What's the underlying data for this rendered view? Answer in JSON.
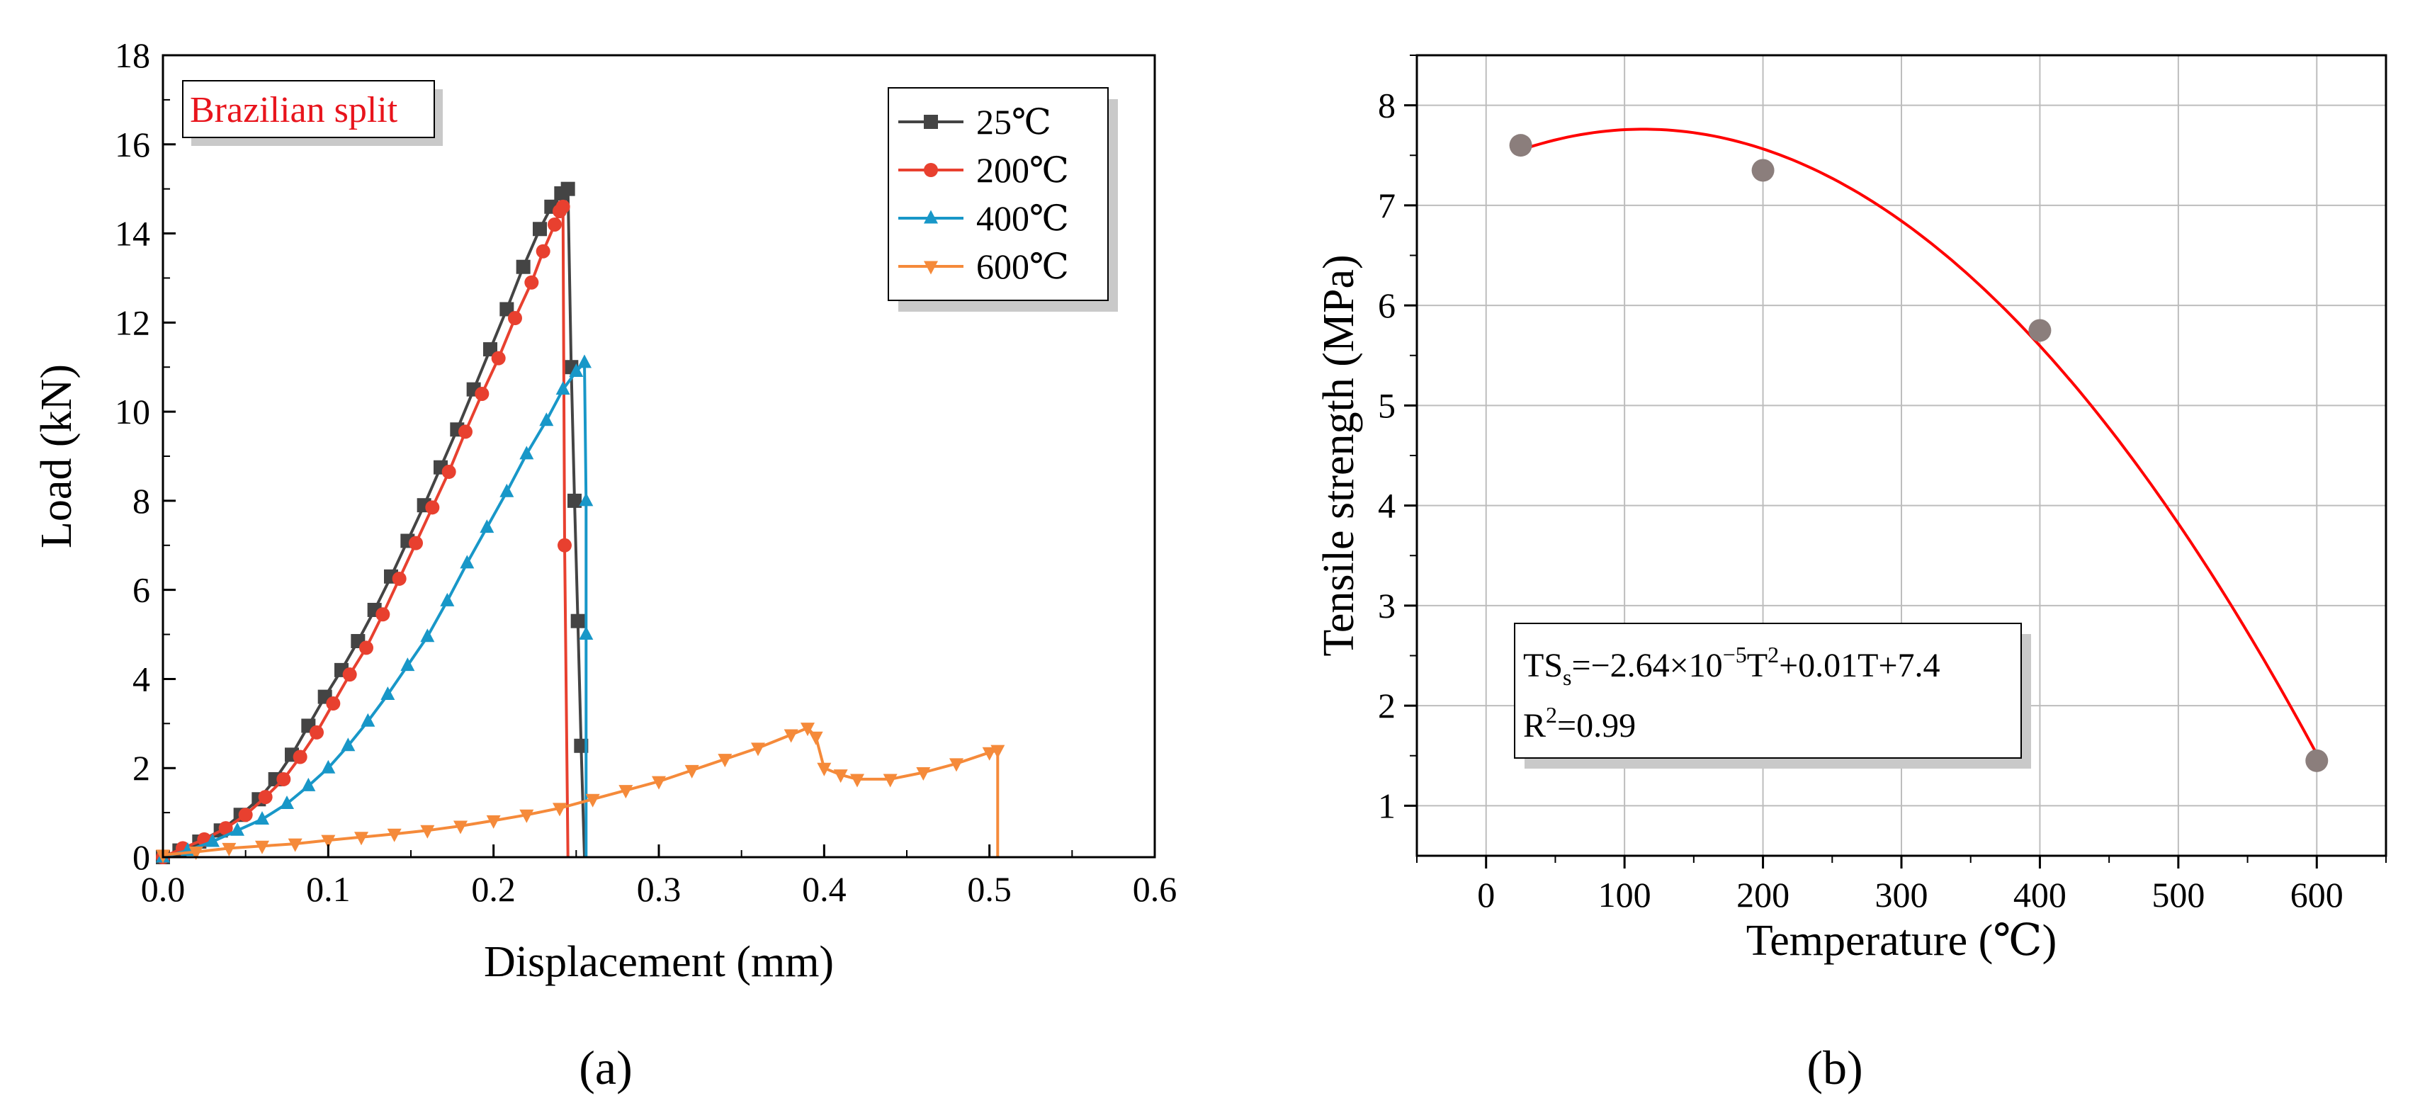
{
  "panel_labels": [
    "(a)",
    "(b)"
  ],
  "chart_data": [
    {
      "type": "line",
      "xlabel": "Displacement (mm)",
      "ylabel": "Load (kN)",
      "xlim": [
        0,
        0.6
      ],
      "ylim": [
        0,
        18
      ],
      "x_ticks": [
        "0.0",
        "0.1",
        "0.2",
        "0.3",
        "0.4",
        "0.5",
        "0.6"
      ],
      "y_ticks": [
        "0",
        "2",
        "4",
        "6",
        "8",
        "10",
        "12",
        "14",
        "16",
        "18"
      ],
      "grid": false,
      "legend_position": "top-right",
      "annotation": "Brazilian split",
      "colors": {
        "annotation_text": "#e8141c"
      },
      "series": [
        {
          "name": "25℃",
          "color": "#444444",
          "marker": "square",
          "x": [
            0.0,
            0.01,
            0.022,
            0.035,
            0.047,
            0.058,
            0.068,
            0.078,
            0.088,
            0.098,
            0.108,
            0.118,
            0.128,
            0.138,
            0.148,
            0.158,
            0.168,
            0.178,
            0.188,
            0.198,
            0.208,
            0.218,
            0.228,
            0.235,
            0.241,
            0.245,
            0.247,
            0.249,
            0.251,
            0.253,
            0.255
          ],
          "y": [
            0.0,
            0.15,
            0.35,
            0.6,
            0.95,
            1.3,
            1.75,
            2.3,
            2.95,
            3.6,
            4.2,
            4.85,
            5.55,
            6.3,
            7.1,
            7.9,
            8.75,
            9.6,
            10.5,
            11.4,
            12.3,
            13.25,
            14.1,
            14.6,
            14.9,
            15.0,
            11.0,
            8.0,
            5.3,
            2.5,
            0.0
          ]
        },
        {
          "name": "200℃",
          "color": "#e8402f",
          "marker": "circle",
          "x": [
            0.0,
            0.012,
            0.025,
            0.038,
            0.05,
            0.062,
            0.073,
            0.083,
            0.093,
            0.103,
            0.113,
            0.123,
            0.133,
            0.143,
            0.153,
            0.163,
            0.173,
            0.183,
            0.193,
            0.203,
            0.213,
            0.223,
            0.23,
            0.237,
            0.24,
            0.242,
            0.243,
            0.245
          ],
          "y": [
            0.0,
            0.2,
            0.4,
            0.65,
            0.95,
            1.35,
            1.75,
            2.25,
            2.8,
            3.45,
            4.1,
            4.7,
            5.45,
            6.25,
            7.05,
            7.85,
            8.65,
            9.55,
            10.4,
            11.2,
            12.1,
            12.9,
            13.6,
            14.2,
            14.5,
            14.6,
            7.0,
            0.0
          ]
        },
        {
          "name": "400℃",
          "color": "#1897c8",
          "marker": "triangle-up",
          "x": [
            0.0,
            0.015,
            0.03,
            0.045,
            0.06,
            0.075,
            0.088,
            0.1,
            0.112,
            0.124,
            0.136,
            0.148,
            0.16,
            0.172,
            0.184,
            0.196,
            0.208,
            0.22,
            0.232,
            0.242,
            0.25,
            0.255,
            0.256,
            0.256,
            0.256
          ],
          "y": [
            0.0,
            0.15,
            0.35,
            0.6,
            0.85,
            1.2,
            1.6,
            2.0,
            2.5,
            3.05,
            3.65,
            4.3,
            4.95,
            5.75,
            6.6,
            7.4,
            8.2,
            9.05,
            9.8,
            10.5,
            10.9,
            11.1,
            8.0,
            5.0,
            0.0
          ]
        },
        {
          "name": "600℃",
          "color": "#f58a3a",
          "marker": "triangle-down",
          "x": [
            0.0,
            0.02,
            0.04,
            0.06,
            0.08,
            0.1,
            0.12,
            0.14,
            0.16,
            0.18,
            0.2,
            0.22,
            0.24,
            0.26,
            0.28,
            0.3,
            0.32,
            0.34,
            0.36,
            0.38,
            0.39,
            0.395,
            0.4,
            0.41,
            0.42,
            0.44,
            0.46,
            0.48,
            0.5,
            0.505,
            0.505
          ],
          "y": [
            0.05,
            0.12,
            0.2,
            0.25,
            0.3,
            0.38,
            0.45,
            0.52,
            0.6,
            0.7,
            0.82,
            0.95,
            1.1,
            1.3,
            1.5,
            1.7,
            1.95,
            2.2,
            2.45,
            2.75,
            2.9,
            2.7,
            2.0,
            1.85,
            1.75,
            1.75,
            1.9,
            2.1,
            2.35,
            2.4,
            0.0
          ]
        }
      ]
    },
    {
      "type": "scatter",
      "xlabel": "Temperature (℃)",
      "ylabel": "Tensile strength (MPa)",
      "xlim": [
        -50,
        650
      ],
      "ylim": [
        0.5,
        8.5
      ],
      "x_ticks": [
        "0",
        "100",
        "200",
        "300",
        "400",
        "500",
        "600"
      ],
      "y_ticks": [
        "1",
        "2",
        "3",
        "4",
        "5",
        "6",
        "7",
        "8"
      ],
      "grid": true,
      "colors": {
        "point": "#8b7e7c",
        "fit_line": "#ff0000"
      },
      "points": {
        "x": [
          25,
          200,
          400,
          600
        ],
        "y": [
          7.6,
          7.35,
          5.75,
          1.45
        ]
      },
      "fit": {
        "type": "quadratic",
        "a": -2.64e-05,
        "b": 0.006,
        "c": 7.42,
        "x_range": [
          25,
          600
        ]
      },
      "equation": {
        "lhs": "TS",
        "lhs_sub": "s",
        "rhs_pre": "=−2.64×10",
        "exp": "−5",
        "rhs_mid": "T",
        "t_exp": "2",
        "rhs_post": "+0.01T+7.4"
      },
      "r2": {
        "pre": "R",
        "exp": "2",
        "post": "=0.99"
      }
    }
  ]
}
